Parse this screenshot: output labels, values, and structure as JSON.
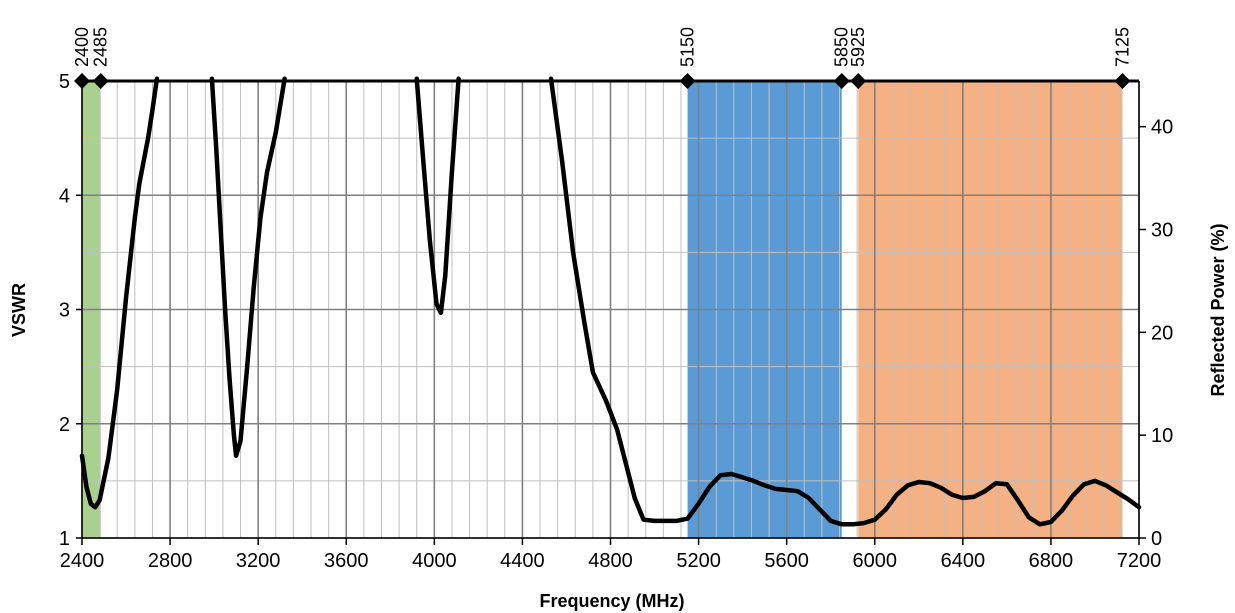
{
  "chart_data": {
    "type": "line",
    "x_axis": {
      "label": "Frequency (MHz)",
      "range": [
        2400,
        7200
      ],
      "ticks": [
        "2400",
        "2800",
        "3200",
        "3600",
        "4000",
        "4400",
        "4800",
        "5200",
        "5600",
        "6000",
        "6400",
        "6800",
        "7200"
      ],
      "major_step": 400,
      "minor_step": 80
    },
    "y_axis_left": {
      "label": "VSWR",
      "range": [
        1,
        5
      ],
      "ticks": [
        "1",
        "2",
        "3",
        "4",
        "5"
      ],
      "minor_step": 0.5
    },
    "y_axis_right": {
      "label": "Reflected Power (%)",
      "range": [
        0,
        44.44
      ],
      "ticks": [
        "0",
        "10",
        "20",
        "30",
        "40"
      ]
    },
    "grid": true,
    "band_markers": [
      {
        "label": "2400",
        "value": 2400
      },
      {
        "label": "2485",
        "value": 2485
      },
      {
        "label": "5150",
        "value": 5150
      },
      {
        "label": "5850",
        "value": 5850
      },
      {
        "label": "5925",
        "value": 5925
      },
      {
        "label": "7125",
        "value": 7125
      }
    ],
    "bands": [
      {
        "from": 2400,
        "to": 2485,
        "color": "#a9d18e"
      },
      {
        "from": 5150,
        "to": 5850,
        "color": "#5b9bd5"
      },
      {
        "from": 5925,
        "to": 7125,
        "color": "#f4b183"
      }
    ],
    "series": [
      {
        "color": "#000000",
        "points": [
          [
            2400,
            1.72
          ],
          [
            2420,
            1.45
          ],
          [
            2440,
            1.3
          ],
          [
            2460,
            1.27
          ],
          [
            2480,
            1.33
          ],
          [
            2520,
            1.7
          ],
          [
            2560,
            2.3
          ],
          [
            2600,
            3.1
          ],
          [
            2640,
            3.8
          ],
          [
            2660,
            4.1
          ],
          [
            2700,
            4.5
          ],
          [
            2720,
            4.75
          ],
          [
            2740,
            5.02
          ],
          [
            null,
            null
          ],
          [
            2990,
            5.02
          ],
          [
            3010,
            4.4
          ],
          [
            3030,
            3.7
          ],
          [
            3050,
            3.0
          ],
          [
            3070,
            2.4
          ],
          [
            3090,
            1.9
          ],
          [
            3100,
            1.72
          ],
          [
            3120,
            1.85
          ],
          [
            3150,
            2.5
          ],
          [
            3180,
            3.2
          ],
          [
            3210,
            3.8
          ],
          [
            3240,
            4.2
          ],
          [
            3280,
            4.55
          ],
          [
            3320,
            5.02
          ],
          [
            null,
            null
          ],
          [
            3920,
            5.02
          ],
          [
            3950,
            4.3
          ],
          [
            3980,
            3.6
          ],
          [
            4010,
            3.05
          ],
          [
            4030,
            2.97
          ],
          [
            4050,
            3.3
          ],
          [
            4080,
            4.2
          ],
          [
            4110,
            5.02
          ],
          [
            null,
            null
          ],
          [
            4530,
            5.02
          ],
          [
            4580,
            4.3
          ],
          [
            4630,
            3.5
          ],
          [
            4680,
            2.9
          ],
          [
            4720,
            2.45
          ],
          [
            4780,
            2.2
          ],
          [
            4830,
            1.95
          ],
          [
            4870,
            1.65
          ],
          [
            4910,
            1.35
          ],
          [
            4950,
            1.16
          ],
          [
            5000,
            1.15
          ],
          [
            5050,
            1.15
          ],
          [
            5100,
            1.15
          ],
          [
            5150,
            1.17
          ],
          [
            5200,
            1.3
          ],
          [
            5250,
            1.45
          ],
          [
            5300,
            1.55
          ],
          [
            5350,
            1.56
          ],
          [
            5400,
            1.53
          ],
          [
            5450,
            1.5
          ],
          [
            5500,
            1.46
          ],
          [
            5550,
            1.43
          ],
          [
            5600,
            1.42
          ],
          [
            5650,
            1.41
          ],
          [
            5700,
            1.35
          ],
          [
            5750,
            1.25
          ],
          [
            5800,
            1.15
          ],
          [
            5850,
            1.12
          ],
          [
            5900,
            1.12
          ],
          [
            5950,
            1.13
          ],
          [
            6000,
            1.16
          ],
          [
            6050,
            1.25
          ],
          [
            6100,
            1.38
          ],
          [
            6150,
            1.46
          ],
          [
            6200,
            1.49
          ],
          [
            6250,
            1.48
          ],
          [
            6300,
            1.44
          ],
          [
            6350,
            1.38
          ],
          [
            6400,
            1.35
          ],
          [
            6450,
            1.36
          ],
          [
            6500,
            1.41
          ],
          [
            6550,
            1.48
          ],
          [
            6600,
            1.47
          ],
          [
            6650,
            1.33
          ],
          [
            6700,
            1.18
          ],
          [
            6750,
            1.12
          ],
          [
            6800,
            1.14
          ],
          [
            6850,
            1.24
          ],
          [
            6900,
            1.37
          ],
          [
            6950,
            1.47
          ],
          [
            7000,
            1.5
          ],
          [
            7050,
            1.46
          ],
          [
            7100,
            1.4
          ],
          [
            7150,
            1.34
          ],
          [
            7200,
            1.27
          ]
        ]
      }
    ]
  }
}
